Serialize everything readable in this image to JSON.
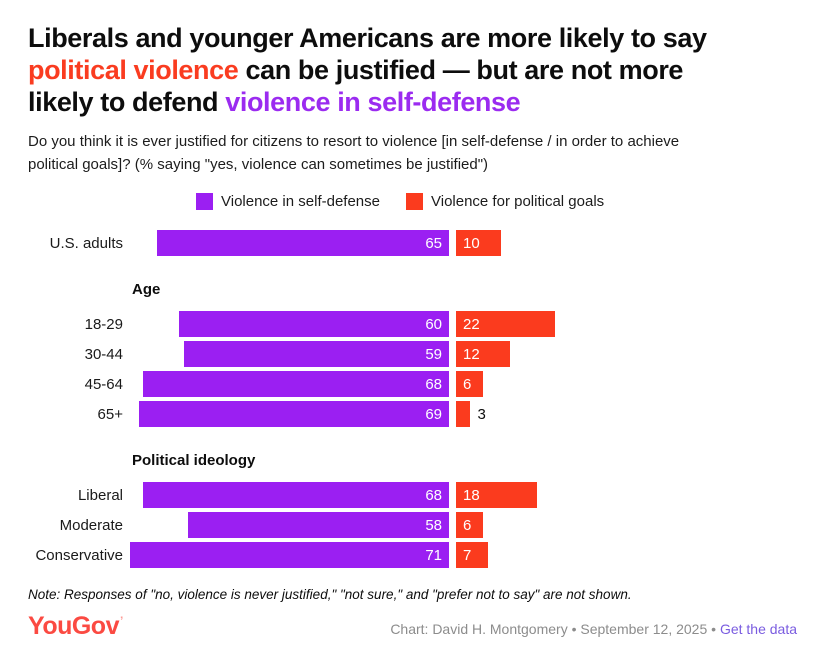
{
  "colors": {
    "black": "#0d0d0d",
    "red": "#fa3c20",
    "purple": "#9b2bf0",
    "bar_purple": "#9b1ff2",
    "bar_red": "#fb3b1e",
    "credit_gray": "#8c8c8c",
    "link_purple": "#7a5ce0",
    "logo_red": "#fb4a42"
  },
  "title": {
    "lines": [
      [
        {
          "text": "Liberals and younger Americans are more likely to say",
          "color": "black"
        }
      ],
      [
        {
          "text": "political violence",
          "color": "red"
        },
        {
          "text": " can be justified — but are not more",
          "color": "black"
        }
      ],
      [
        {
          "text": "likely to defend ",
          "color": "black"
        },
        {
          "text": "violence in self-defense",
          "color": "purple"
        }
      ]
    ]
  },
  "subtitle_lines": [
    "Do you think it is ever justified for citizens to resort to violence [in self-defense / in order to achieve",
    "political goals]? (% saying \"yes, violence can sometimes be justified\")"
  ],
  "legend": [
    {
      "label": "Violence in self-defense",
      "color": "bar_purple"
    },
    {
      "label": "Violence for political goals",
      "color": "bar_red"
    }
  ],
  "chart_data": {
    "type": "bar",
    "orientation": "horizontal",
    "unit": "percent of respondents saying yes",
    "value_range": [
      0,
      100
    ],
    "series": [
      {
        "name": "Violence in self-defense",
        "color": "#9b1ff2"
      },
      {
        "name": "Violence for political goals",
        "color": "#fb3b1e"
      }
    ],
    "groups": [
      {
        "heading": "",
        "rows": [
          {
            "label": "U.S. adults",
            "values": [
              65,
              10
            ]
          }
        ]
      },
      {
        "heading": "Age",
        "rows": [
          {
            "label": "18-29",
            "values": [
              60,
              22
            ]
          },
          {
            "label": "30-44",
            "values": [
              59,
              12
            ]
          },
          {
            "label": "45-64",
            "values": [
              68,
              6
            ]
          },
          {
            "label": "65+",
            "values": [
              69,
              3
            ]
          }
        ]
      },
      {
        "heading": "Political ideology",
        "rows": [
          {
            "label": "Liberal",
            "values": [
              68,
              18
            ]
          },
          {
            "label": "Moderate",
            "values": [
              58,
              6
            ]
          },
          {
            "label": "Conservative",
            "values": [
              71,
              7
            ]
          }
        ]
      }
    ]
  },
  "note": "Note: Responses of \"no, violence is never justified,\" \"not sure,\" and \"prefer not to say\" are not shown.",
  "footer": {
    "logo_text": "YouGov",
    "logo_mark": "’",
    "credit_prefix": "Chart: David H. Montgomery • September 12, 2025 • ",
    "link_label": "Get the data"
  }
}
